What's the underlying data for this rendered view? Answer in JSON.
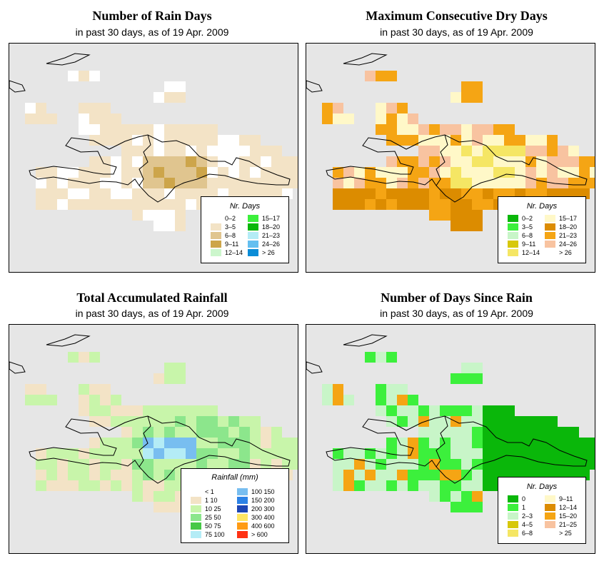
{
  "colors": {
    "map_background": "#e6e6e6",
    "coastline": "#000000",
    "frame": "#000000"
  },
  "panels": [
    {
      "id": "rain_days",
      "title": "Number of Rain Days",
      "subtitle": "in past 30 days, as of  19 Apr. 2009",
      "legend": {
        "title": "Nr. Days",
        "items": [
          {
            "label": "0–2",
            "color": "#ffffff"
          },
          {
            "label": "3–5",
            "color": "#f3e3c6"
          },
          {
            "label": "6–8",
            "color": "#e0c58f"
          },
          {
            "label": "9–11",
            "color": "#cda54a"
          },
          {
            "label": "12–14",
            "color": "#ccf6cc"
          },
          {
            "label": "15–17",
            "color": "#3cf03c"
          },
          {
            "label": "18–20",
            "color": "#0ab70a"
          },
          {
            "label": "21–23",
            "color": "#b4ecf6"
          },
          {
            "label": "24–26",
            "color": "#64bff0"
          },
          {
            "label": "> 26",
            "color": "#0a8cd7"
          }
        ]
      }
    },
    {
      "id": "dry_days",
      "title": "Maximum Consecutive Dry Days",
      "subtitle": "in past 30 days, as of  19 Apr. 2009",
      "legend": {
        "title": "Nr. Days",
        "items": [
          {
            "label": "0–2",
            "color": "#0ab70a"
          },
          {
            "label": "3–5",
            "color": "#3cf03c"
          },
          {
            "label": "6–8",
            "color": "#c8f5c8"
          },
          {
            "label": "9–11",
            "color": "#d7c80a"
          },
          {
            "label": "12–14",
            "color": "#f5e664"
          },
          {
            "label": "15–17",
            "color": "#fff8c8"
          },
          {
            "label": "18–20",
            "color": "#dc8c00"
          },
          {
            "label": "21–23",
            "color": "#f5a514"
          },
          {
            "label": "24–26",
            "color": "#f8c3a0"
          },
          {
            "label": "> 26",
            "color": "#ffffff"
          }
        ]
      }
    },
    {
      "id": "rainfall",
      "title": "Total Accumulated Rainfall",
      "subtitle": "in past 30 days, as of  19 Apr. 2009",
      "legend": {
        "title": "Rainfall (mm)",
        "items": [
          {
            "label": "< 1",
            "color": "#ffffff"
          },
          {
            "label": "1   10",
            "color": "#f3e3c6"
          },
          {
            "label": "10   25",
            "color": "#c8f5aa"
          },
          {
            "label": "25   50",
            "color": "#8ce68c"
          },
          {
            "label": "50   75",
            "color": "#46c846"
          },
          {
            "label": "75  100",
            "color": "#b4ecf6"
          },
          {
            "label": "100  150",
            "color": "#78bef0"
          },
          {
            "label": "150  200",
            "color": "#2c82e6"
          },
          {
            "label": "200  300",
            "color": "#1e46b4"
          },
          {
            "label": "300  400",
            "color": "#ffe664"
          },
          {
            "label": "400  600",
            "color": "#ff9b14"
          },
          {
            "label": "> 600",
            "color": "#ff3214"
          }
        ]
      }
    },
    {
      "id": "days_since_rain",
      "title": "Number of Days Since Rain",
      "subtitle": "in past 30 days, as of  19 Apr. 2009",
      "legend": {
        "title": "Nr. Days",
        "items": [
          {
            "label": "0",
            "color": "#0ab70a"
          },
          {
            "label": "1",
            "color": "#3cf03c"
          },
          {
            "label": "2–3",
            "color": "#c8f5c8"
          },
          {
            "label": "4–5",
            "color": "#d7c80a"
          },
          {
            "label": "6–8",
            "color": "#f5e664"
          },
          {
            "label": "9–11",
            "color": "#fff8c8"
          },
          {
            "label": "12–14",
            "color": "#dc8c00"
          },
          {
            "label": "15–20",
            "color": "#f5a514"
          },
          {
            "label": "21–25",
            "color": "#f8c3a0"
          },
          {
            "label": "> 25",
            "color": "#ffffff"
          }
        ]
      }
    }
  ]
}
